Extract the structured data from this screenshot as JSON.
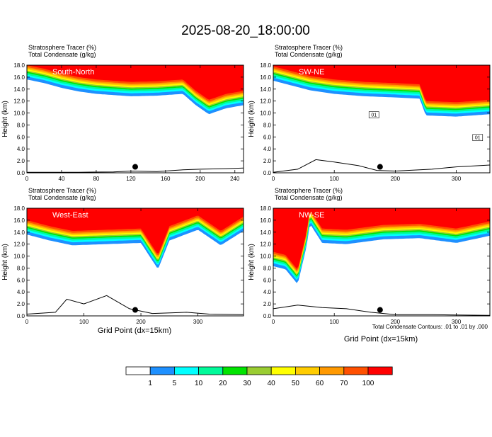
{
  "title": "2025-08-20_18:00:00",
  "colors": {
    "levels": [
      "#ffffff",
      "#1e90ff",
      "#00ffff",
      "#00fa9a",
      "#00e400",
      "#9acd32",
      "#ffff00",
      "#ffcc00",
      "#ff9900",
      "#ff5000",
      "#ff0000"
    ],
    "terrain": "#000000",
    "contour": "#000000"
  },
  "colorbar": {
    "labels": [
      "1",
      "5",
      "10",
      "20",
      "30",
      "40",
      "50",
      "60",
      "70",
      "100"
    ]
  },
  "footer": {
    "xlabel_left": "Grid Point (dx=15km)",
    "xlabel_right": "Grid Point (dx=15km)",
    "contour_note": "Total Condensate Contours: .01 to .01 by .000"
  },
  "chart_data": [
    {
      "type": "area",
      "name_label": "South-North",
      "subtitle_1": "Stratosphere Tracer   (%)",
      "subtitle_2": "Total Condensate   (g/kg)",
      "ylabel": "Height (km)",
      "xlim": [
        0,
        250
      ],
      "ylim": [
        0,
        18
      ],
      "xticks": [
        0,
        40,
        80,
        120,
        160,
        200,
        240
      ],
      "yticks": [
        0.0,
        2.0,
        4.0,
        6.0,
        8.0,
        10.0,
        12.0,
        14.0,
        16.0,
        18.0
      ],
      "tracer_base_km": [
        [
          0,
          15.8
        ],
        [
          20,
          15.2
        ],
        [
          40,
          14.4
        ],
        [
          60,
          13.8
        ],
        [
          80,
          13.4
        ],
        [
          100,
          13.2
        ],
        [
          120,
          13.0
        ],
        [
          150,
          13.1
        ],
        [
          180,
          13.4
        ],
        [
          195,
          11.5
        ],
        [
          210,
          10.0
        ],
        [
          230,
          11.0
        ],
        [
          250,
          11.5
        ]
      ],
      "terrain_km": [
        [
          0,
          0.1
        ],
        [
          60,
          0.1
        ],
        [
          100,
          0.15
        ],
        [
          120,
          0.3
        ],
        [
          150,
          0.2
        ],
        [
          180,
          0.5
        ],
        [
          200,
          0.6
        ],
        [
          230,
          0.7
        ],
        [
          250,
          0.8
        ]
      ],
      "marker_x": 125
    },
    {
      "type": "area",
      "name_label": "SW-NE",
      "subtitle_1": "Stratosphere Tracer   (%)",
      "subtitle_2": "Total Condensate   (g/kg)",
      "ylabel": "Height (km)",
      "xlim": [
        0,
        355
      ],
      "ylim": [
        0,
        18
      ],
      "xticks": [
        0,
        100,
        200,
        300
      ],
      "yticks": [
        0.0,
        2.0,
        4.0,
        6.0,
        8.0,
        10.0,
        12.0,
        14.0,
        16.0,
        18.0
      ],
      "tracer_base_km": [
        [
          0,
          15.6
        ],
        [
          30,
          14.8
        ],
        [
          60,
          14.0
        ],
        [
          100,
          13.4
        ],
        [
          150,
          13.0
        ],
        [
          200,
          12.8
        ],
        [
          240,
          12.6
        ],
        [
          250,
          9.8
        ],
        [
          300,
          9.6
        ],
        [
          355,
          10.0
        ]
      ],
      "terrain_km": [
        [
          0,
          0.1
        ],
        [
          40,
          0.6
        ],
        [
          70,
          2.2
        ],
        [
          100,
          1.8
        ],
        [
          140,
          1.2
        ],
        [
          170,
          0.4
        ],
        [
          200,
          0.3
        ],
        [
          260,
          0.6
        ],
        [
          300,
          1.0
        ],
        [
          355,
          1.3
        ]
      ],
      "marker_x": 175,
      "contour_labels": [
        "01",
        "01"
      ]
    },
    {
      "type": "area",
      "name_label": "West-East",
      "subtitle_1": "Stratosphere Tracer   (%)",
      "subtitle_2": "Total Condensate   (g/kg)",
      "ylabel": "Height (km)",
      "xlim": [
        0,
        380
      ],
      "ylim": [
        0,
        18
      ],
      "xticks": [
        0,
        100,
        200,
        300
      ],
      "yticks": [
        0.0,
        2.0,
        4.0,
        6.0,
        8.0,
        10.0,
        12.0,
        14.0,
        16.0,
        18.0
      ],
      "tracer_base_km": [
        [
          0,
          13.8
        ],
        [
          40,
          12.8
        ],
        [
          80,
          12.0
        ],
        [
          140,
          12.2
        ],
        [
          200,
          12.4
        ],
        [
          230,
          8.0
        ],
        [
          250,
          12.8
        ],
        [
          300,
          14.6
        ],
        [
          340,
          12.0
        ],
        [
          380,
          14.4
        ]
      ],
      "terrain_km": [
        [
          0,
          0.3
        ],
        [
          50,
          0.6
        ],
        [
          70,
          2.8
        ],
        [
          100,
          2.0
        ],
        [
          140,
          3.4
        ],
        [
          180,
          1.2
        ],
        [
          220,
          0.4
        ],
        [
          280,
          0.6
        ],
        [
          320,
          0.3
        ],
        [
          380,
          0.2
        ]
      ],
      "marker_x": 190
    },
    {
      "type": "area",
      "name_label": "NW-SE",
      "subtitle_1": "Stratosphere Tracer   (%)",
      "subtitle_2": "Total Condensate   (g/kg)",
      "ylabel": "Height (km)",
      "xlim": [
        0,
        355
      ],
      "ylim": [
        0,
        18
      ],
      "xticks": [
        0,
        100,
        200,
        300
      ],
      "yticks": [
        0.0,
        2.0,
        4.0,
        6.0,
        8.0,
        10.0,
        12.0,
        14.0,
        16.0,
        18.0
      ],
      "tracer_base_km": [
        [
          0,
          8.5
        ],
        [
          20,
          8.0
        ],
        [
          40,
          5.5
        ],
        [
          55,
          12.0
        ],
        [
          60,
          15.6
        ],
        [
          80,
          12.4
        ],
        [
          120,
          12.2
        ],
        [
          180,
          13.0
        ],
        [
          240,
          13.2
        ],
        [
          300,
          12.4
        ],
        [
          355,
          13.6
        ]
      ],
      "terrain_km": [
        [
          0,
          1.2
        ],
        [
          40,
          1.8
        ],
        [
          80,
          1.4
        ],
        [
          120,
          1.2
        ],
        [
          160,
          0.6
        ],
        [
          200,
          0.2
        ],
        [
          260,
          0.2
        ],
        [
          355,
          0.1
        ]
      ],
      "marker_x": 175
    }
  ]
}
